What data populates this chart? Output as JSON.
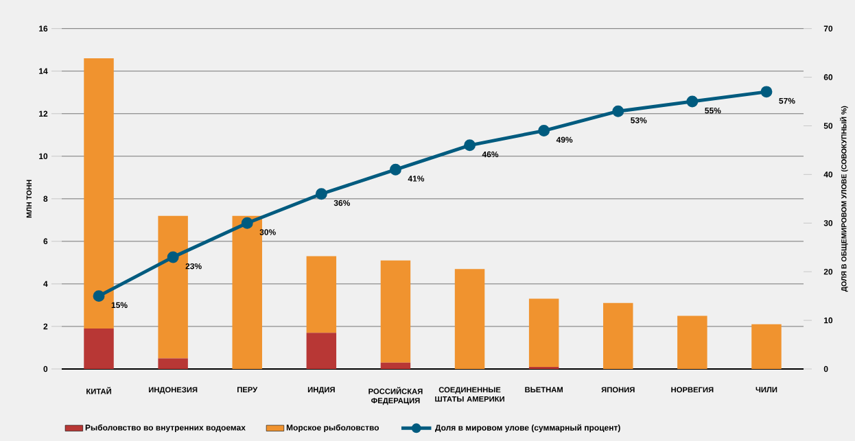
{
  "chart_data": {
    "type": "bar",
    "stacked": true,
    "categories": [
      "КИТАЙ",
      "ИНДОНЕЗИЯ",
      "ПЕРУ",
      "ИНДИЯ",
      "РОССИЙСКАЯ ФЕДЕРАЦИЯ",
      "СОЕДИНЕННЫЕ ШТАТЫ АМЕРИКИ",
      "ВЬЕТНАМ",
      "ЯПОНИЯ",
      "НОРВЕГИЯ",
      "ЧИЛИ"
    ],
    "series": [
      {
        "name": "Рыболовство во внутренних водоемах",
        "color": "#b83735",
        "values": [
          1.9,
          0.5,
          0,
          1.7,
          0.3,
          0,
          0.1,
          0,
          0,
          0
        ]
      },
      {
        "name": "Морское рыболовство",
        "color": "#f0932f",
        "values": [
          12.7,
          6.7,
          7.2,
          3.6,
          4.8,
          4.7,
          3.2,
          3.1,
          2.5,
          2.1
        ]
      },
      {
        "name": "Доля в мировом улове (суммарный процент)",
        "type": "line",
        "axis": "y2",
        "color": "#005b7f",
        "values": [
          15,
          23,
          30,
          36,
          41,
          46,
          49,
          53,
          55,
          57
        ],
        "value_labels": [
          "15%",
          "23%",
          "30%",
          "36%",
          "41%",
          "46%",
          "49%",
          "53%",
          "55%",
          "57%"
        ]
      }
    ],
    "ylabel": "МЛН ТОНН",
    "y2label": "ДОЛЯ В ОБЩЕМИРОВОМ УЛОВЕ (СОВОКУПНЫЙ %)",
    "ylim": [
      0,
      16
    ],
    "yticks": [
      0,
      2,
      4,
      6,
      8,
      10,
      12,
      14,
      16
    ],
    "y2lim": [
      0,
      70
    ],
    "y2ticks": [
      0,
      10,
      20,
      30,
      40,
      50,
      60,
      70
    ],
    "grid": "y",
    "legend": "bottom",
    "marker": "circle",
    "line_style": "solid"
  }
}
